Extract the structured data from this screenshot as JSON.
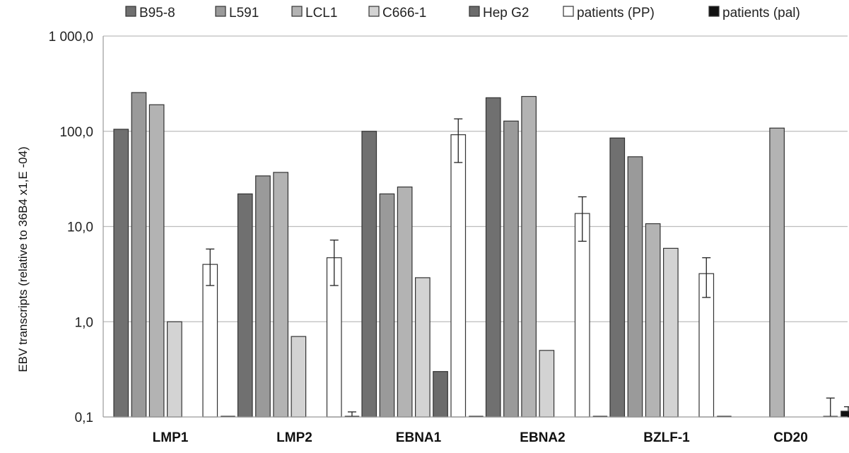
{
  "chart_data": {
    "type": "bar",
    "title": "",
    "xlabel": "",
    "ylabel": "EBV transcripts  (relative to 36B4 x1,E -04)",
    "yscale": "log",
    "ylim": [
      0.1,
      1000
    ],
    "yticks": [
      {
        "value": 0.1,
        "label": "0,1"
      },
      {
        "value": 1,
        "label": "1,0"
      },
      {
        "value": 10,
        "label": "10,0"
      },
      {
        "value": 100,
        "label": "100,0"
      },
      {
        "value": 1000,
        "label": "1 000,0"
      }
    ],
    "grid": true,
    "legend_position": "top",
    "categories": [
      "LMP1",
      "LMP2",
      "EBNA1",
      "EBNA2",
      "BZLF-1",
      "CD20"
    ],
    "series": [
      {
        "name": "B95-8",
        "color": "#707070",
        "values": [
          105,
          22,
          100,
          225,
          85,
          null
        ]
      },
      {
        "name": "L591",
        "color": "#9a9a9a",
        "values": [
          255,
          34,
          22,
          128,
          54,
          null
        ]
      },
      {
        "name": "LCL1",
        "color": "#b3b3b3",
        "values": [
          190,
          37,
          26,
          232,
          10.7,
          108
        ]
      },
      {
        "name": "C666-1",
        "color": "#d3d3d3",
        "values": [
          1.0,
          0.7,
          2.9,
          0.5,
          5.9,
          null
        ]
      },
      {
        "name": "Hep G2",
        "color": "#6b6b6b",
        "values": [
          null,
          null,
          0.3,
          null,
          null,
          null
        ]
      },
      {
        "name": "patients (PP)",
        "color": "#ffffff",
        "values": [
          4.0,
          4.7,
          92,
          13.7,
          3.2,
          0.1
        ],
        "error": [
          [
            2.4,
            5.8
          ],
          [
            2.4,
            7.2
          ],
          [
            47,
            135
          ],
          [
            7.0,
            20.5
          ],
          [
            1.8,
            4.7
          ],
          [
            null,
            0.158
          ]
        ]
      },
      {
        "name": "patients (pal)",
        "color": "#111111",
        "values": [
          0.1,
          0.1,
          0.1,
          0.1,
          0.1,
          0.115
        ],
        "error": [
          [
            null,
            null
          ],
          [
            null,
            0.113
          ],
          [
            null,
            null
          ],
          [
            null,
            null
          ],
          [
            null,
            null
          ],
          [
            null,
            0.128
          ]
        ]
      }
    ]
  }
}
